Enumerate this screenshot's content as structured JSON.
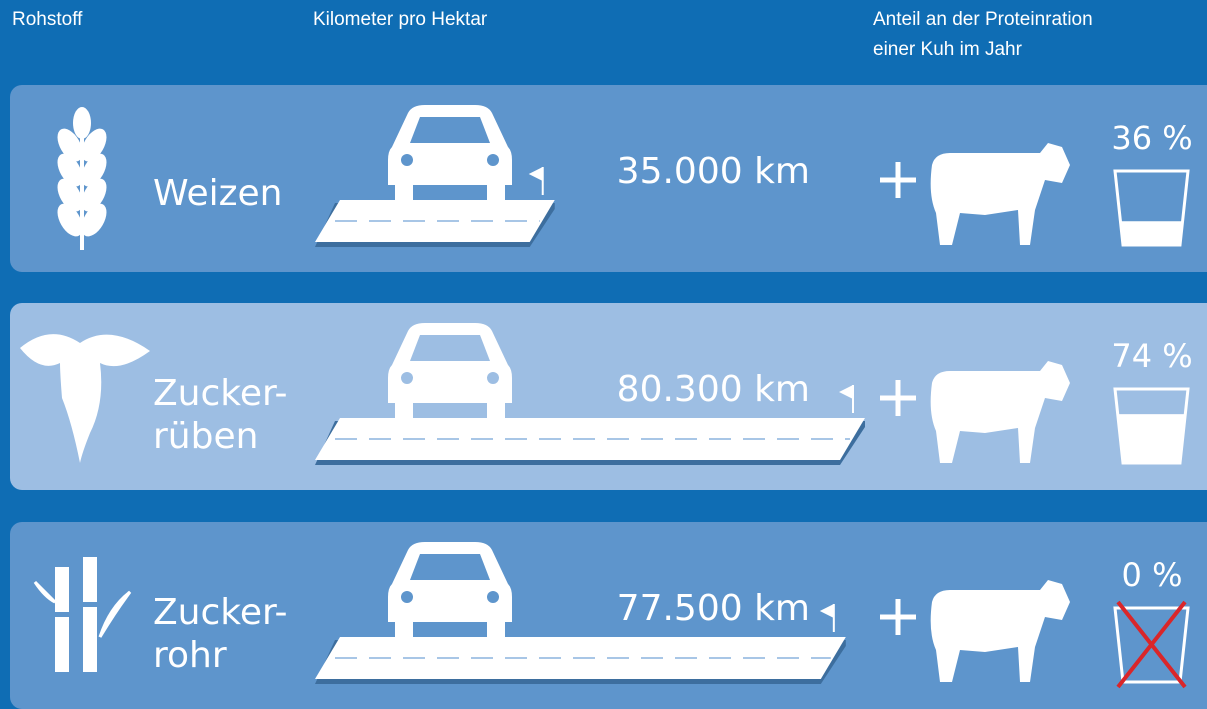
{
  "header": {
    "raw_material": "Rohstoff",
    "distance": "Kilometer pro Hektar",
    "share": [
      "Anteil an der Proteinration",
      "einer Kuh im Jahr"
    ]
  },
  "rows": [
    {
      "name": [
        "Weizen"
      ],
      "km": 35000,
      "km_label": "35.000 km",
      "share": 36,
      "share_label": "36 %"
    },
    {
      "name": [
        "Zucker-",
        "rüben"
      ],
      "km": 80300,
      "km_label": "80.300 km",
      "share": 74,
      "share_label": "74 %"
    },
    {
      "name": [
        "Zucker-",
        "rohr"
      ],
      "km": 77500,
      "km_label": "77.500 km",
      "share": 0,
      "share_label": "0 %"
    }
  ]
}
